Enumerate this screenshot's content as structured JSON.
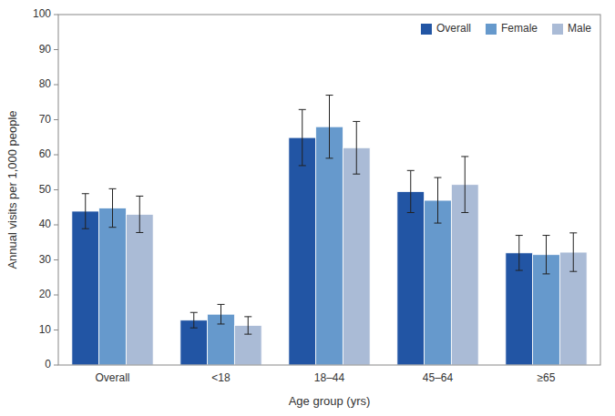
{
  "chart_data": {
    "type": "bar",
    "categories": [
      "Overall",
      "<18",
      "18–44",
      "45–64",
      "≥65"
    ],
    "xlabel": "Age group (yrs)",
    "ylabel": "Annual visits per 1,000 people",
    "ylim": [
      0,
      100
    ],
    "yticks": [
      0,
      10,
      20,
      30,
      40,
      50,
      60,
      70,
      80,
      90,
      100
    ],
    "grid": false,
    "legend": "upper right",
    "series": [
      {
        "name": "Overall",
        "color": "#2255a4",
        "values": [
          43.9,
          12.8,
          64.9,
          49.5,
          32.0
        ],
        "errors": [
          5.0,
          2.2,
          8.0,
          6.0,
          5.0
        ]
      },
      {
        "name": "Female",
        "color": "#6699cc",
        "values": [
          44.8,
          14.5,
          68.0,
          47.0,
          31.5
        ],
        "errors": [
          5.5,
          2.8,
          9.0,
          6.5,
          5.5
        ]
      },
      {
        "name": "Male",
        "color": "#aabbd6",
        "values": [
          43.0,
          11.3,
          62.0,
          51.5,
          32.2
        ],
        "errors": [
          5.2,
          2.5,
          7.5,
          8.0,
          5.5
        ]
      }
    ]
  }
}
